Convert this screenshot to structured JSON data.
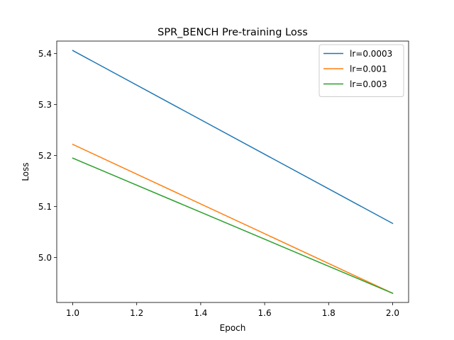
{
  "chart_data": {
    "type": "line",
    "title": "SPR_BENCH Pre-training Loss",
    "xlabel": "Epoch",
    "ylabel": "Loss",
    "xlim": [
      0.95,
      2.05
    ],
    "ylim": [
      4.912,
      5.4245
    ],
    "xticks": [
      1.0,
      1.2,
      1.4,
      1.6,
      1.8,
      2.0
    ],
    "xtick_labels": [
      "1.0",
      "1.2",
      "1.4",
      "1.6",
      "1.8",
      "2.0"
    ],
    "yticks": [
      5.0,
      5.1,
      5.2,
      5.3,
      5.4
    ],
    "ytick_labels": [
      "5.0",
      "5.1",
      "5.2",
      "5.3",
      "5.4"
    ],
    "grid": false,
    "legend_position": "top-right",
    "series": [
      {
        "name": "lr=0.0003",
        "color": "#1f77b4",
        "x": [
          1.0,
          2.0
        ],
        "y": [
          5.406,
          5.067
        ]
      },
      {
        "name": "lr=0.001",
        "color": "#ff7f0e",
        "x": [
          1.0,
          2.0
        ],
        "y": [
          5.222,
          4.93
        ]
      },
      {
        "name": "lr=0.003",
        "color": "#2ca02c",
        "x": [
          1.0,
          2.0
        ],
        "y": [
          5.195,
          4.93
        ]
      }
    ]
  }
}
